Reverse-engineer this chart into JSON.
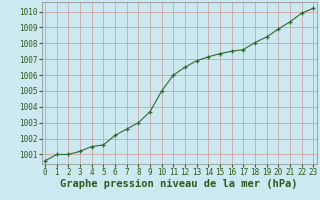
{
  "x": [
    0,
    1,
    2,
    3,
    4,
    5,
    6,
    7,
    8,
    9,
    10,
    11,
    12,
    13,
    14,
    15,
    16,
    17,
    18,
    19,
    20,
    21,
    22,
    23
  ],
  "y": [
    1000.6,
    1001.0,
    1001.0,
    1001.2,
    1001.5,
    1001.6,
    1002.2,
    1002.6,
    1003.0,
    1003.7,
    1005.0,
    1006.0,
    1006.5,
    1006.9,
    1007.15,
    1007.35,
    1007.5,
    1007.6,
    1008.05,
    1008.4,
    1008.9,
    1009.35,
    1009.9,
    1010.2
  ],
  "ylim": [
    1000.4,
    1010.6
  ],
  "yticks": [
    1001,
    1002,
    1003,
    1004,
    1005,
    1006,
    1007,
    1008,
    1009,
    1010
  ],
  "xlim": [
    -0.3,
    23.3
  ],
  "xticks": [
    0,
    1,
    2,
    3,
    4,
    5,
    6,
    7,
    8,
    9,
    10,
    11,
    12,
    13,
    14,
    15,
    16,
    17,
    18,
    19,
    20,
    21,
    22,
    23
  ],
  "line_color": "#2d6a2d",
  "marker": "+",
  "marker_color": "#2d6a2d",
  "bg_plot": "#cce8f0",
  "bg_fig": "#cce8f0",
  "grid_color_h": "#cc9999",
  "grid_color_v": "#cc9999",
  "xlabel": "Graphe pression niveau de la mer (hPa)",
  "xlabel_color": "#2d5a1a",
  "tick_color": "#2d5a1a",
  "tick_fontsize": 5.5,
  "xlabel_fontsize": 7.5
}
